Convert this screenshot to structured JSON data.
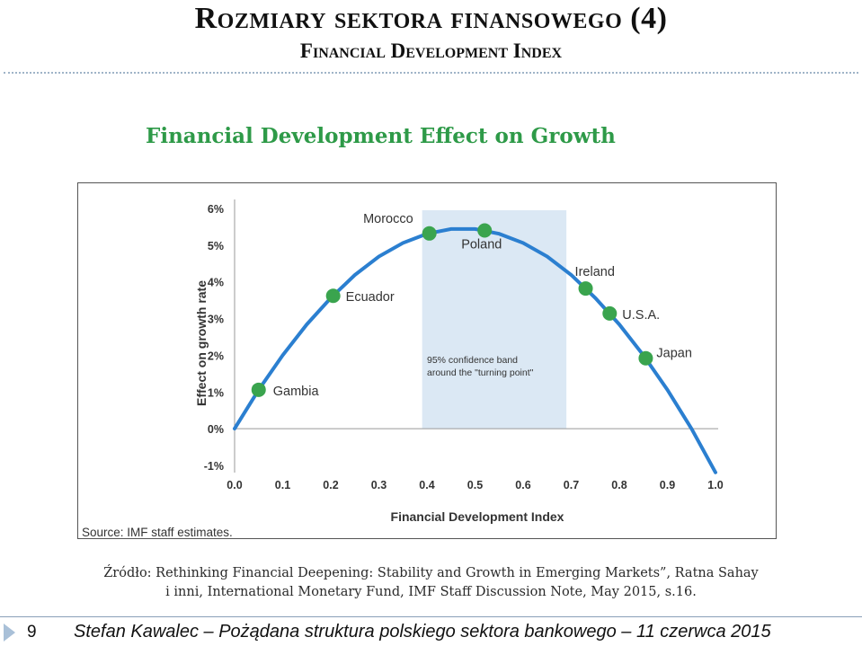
{
  "slide": {
    "title": "Rozmiary sektora finansowego (4)",
    "subtitle": "Financial Development Index",
    "chart_heading": "Financial Development Effect on Growth",
    "source_line1": "Źródło: Rethinking Financial Deepening: Stability and Growth in Emerging Markets”, Ratna Sahay",
    "source_line2": "i inni, International Monetary Fund, IMF Staff Discussion Note, May 2015, s.16.",
    "page_number": "9",
    "footer": "Stefan Kawalec – Pożądana struktura polskiego sektora bankowego – 11 czerwca 2015"
  },
  "chart_data": {
    "type": "line",
    "title": "",
    "xlabel": "Financial Development Index",
    "ylabel": "Effect on growth rate",
    "source_note": "Source: IMF staff estimates.",
    "xlim": [
      0.0,
      1.0
    ],
    "ylim": [
      -1,
      6
    ],
    "x_ticks": [
      "0.0",
      "0.1",
      "0.2",
      "0.3",
      "0.4",
      "0.5",
      "0.6",
      "0.7",
      "0.8",
      "0.9",
      "1.0"
    ],
    "y_ticks": [
      "6%",
      "5%",
      "4%",
      "3%",
      "2%",
      "1%",
      "0%",
      "-1%"
    ],
    "y_tick_values": [
      6,
      5,
      4,
      3,
      2,
      1,
      0,
      -1
    ],
    "curve": {
      "x": [
        0.0,
        0.05,
        0.1,
        0.15,
        0.2,
        0.25,
        0.3,
        0.35,
        0.4,
        0.45,
        0.5,
        0.55,
        0.6,
        0.65,
        0.7,
        0.75,
        0.8,
        0.85,
        0.9,
        0.95,
        1.0
      ],
      "y": [
        0.0,
        1.06,
        2.0,
        2.84,
        3.56,
        4.19,
        4.69,
        5.06,
        5.31,
        5.44,
        5.44,
        5.31,
        5.06,
        4.69,
        4.19,
        3.56,
        2.84,
        2.0,
        1.06,
        0.0,
        -1.19
      ]
    },
    "confidence_band": {
      "x_start": 0.39,
      "x_end": 0.69,
      "label_line1": "95% confidence band",
      "label_line2": "around the \"turning point\""
    },
    "points": [
      {
        "name": "Gambia",
        "x": 0.05,
        "y": 1.06
      },
      {
        "name": "Ecuador",
        "x": 0.205,
        "y": 3.62
      },
      {
        "name": "Morocco",
        "x": 0.405,
        "y": 5.32
      },
      {
        "name": "Poland",
        "x": 0.52,
        "y": 5.4
      },
      {
        "name": "Ireland",
        "x": 0.73,
        "y": 3.82
      },
      {
        "name": "U.S.A.",
        "x": 0.78,
        "y": 3.14
      },
      {
        "name": "Japan",
        "x": 0.855,
        "y": 1.92
      }
    ],
    "colors": {
      "curve": "#2b7fd0",
      "points": "#3aa44e",
      "band": "#dbe8f4",
      "axis": "#999999",
      "label": "#333333"
    }
  }
}
